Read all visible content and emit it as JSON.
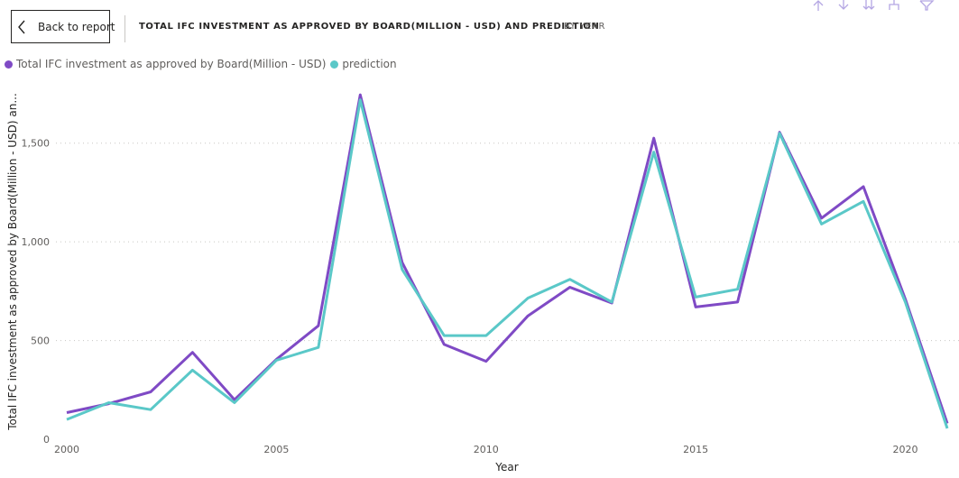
{
  "header": {
    "back_label": "Back to report",
    "title": "TOTAL IFC INVESTMENT AS APPROVED BY BOARD(MILLION - USD) AND PREDICTION",
    "subtitle": "BY YEAR"
  },
  "toolbar": {
    "icons": [
      "arrow-up-icon",
      "arrow-down-icon",
      "double-arrow-down-icon",
      "expand-hierarchy-icon",
      "filter-icon",
      "more-options-icon"
    ],
    "more_label": "···"
  },
  "colors": {
    "actual": "#7f4ac5",
    "prediction": "#5ac8c8",
    "grid": "#c8c6c4",
    "text": "#605e5c",
    "accent_icons": "#b4a6e3"
  },
  "chart_data": {
    "type": "line",
    "x": [
      2000,
      2001,
      2002,
      2003,
      2004,
      2005,
      2006,
      2007,
      2008,
      2009,
      2010,
      2011,
      2012,
      2013,
      2014,
      2015,
      2016,
      2017,
      2018,
      2019,
      2020,
      2021
    ],
    "series": [
      {
        "name": "Total IFC investment as approved by Board(Million - USD)",
        "values": [
          135,
          180,
          240,
          440,
          200,
          405,
          575,
          1745,
          895,
          480,
          395,
          625,
          770,
          690,
          1525,
          670,
          695,
          1555,
          1120,
          1280,
          710,
          80
        ]
      },
      {
        "name": "prediction",
        "values": [
          100,
          185,
          150,
          350,
          185,
          400,
          465,
          1720,
          860,
          525,
          525,
          715,
          810,
          695,
          1455,
          720,
          760,
          1550,
          1090,
          1205,
          695,
          55
        ]
      }
    ],
    "xlabel": "Year",
    "ylabel": "Total IFC investment as approved by Board(Million - USD) an...",
    "xticks": [
      "2000",
      "2005",
      "2010",
      "2015",
      "2020"
    ],
    "yticks": [
      "0",
      "500",
      "1,000",
      "1,500"
    ],
    "xlim": [
      2000,
      2021
    ],
    "ylim": [
      0,
      1750
    ],
    "grid": "horizontal dotted",
    "legend_position": "top-left"
  }
}
